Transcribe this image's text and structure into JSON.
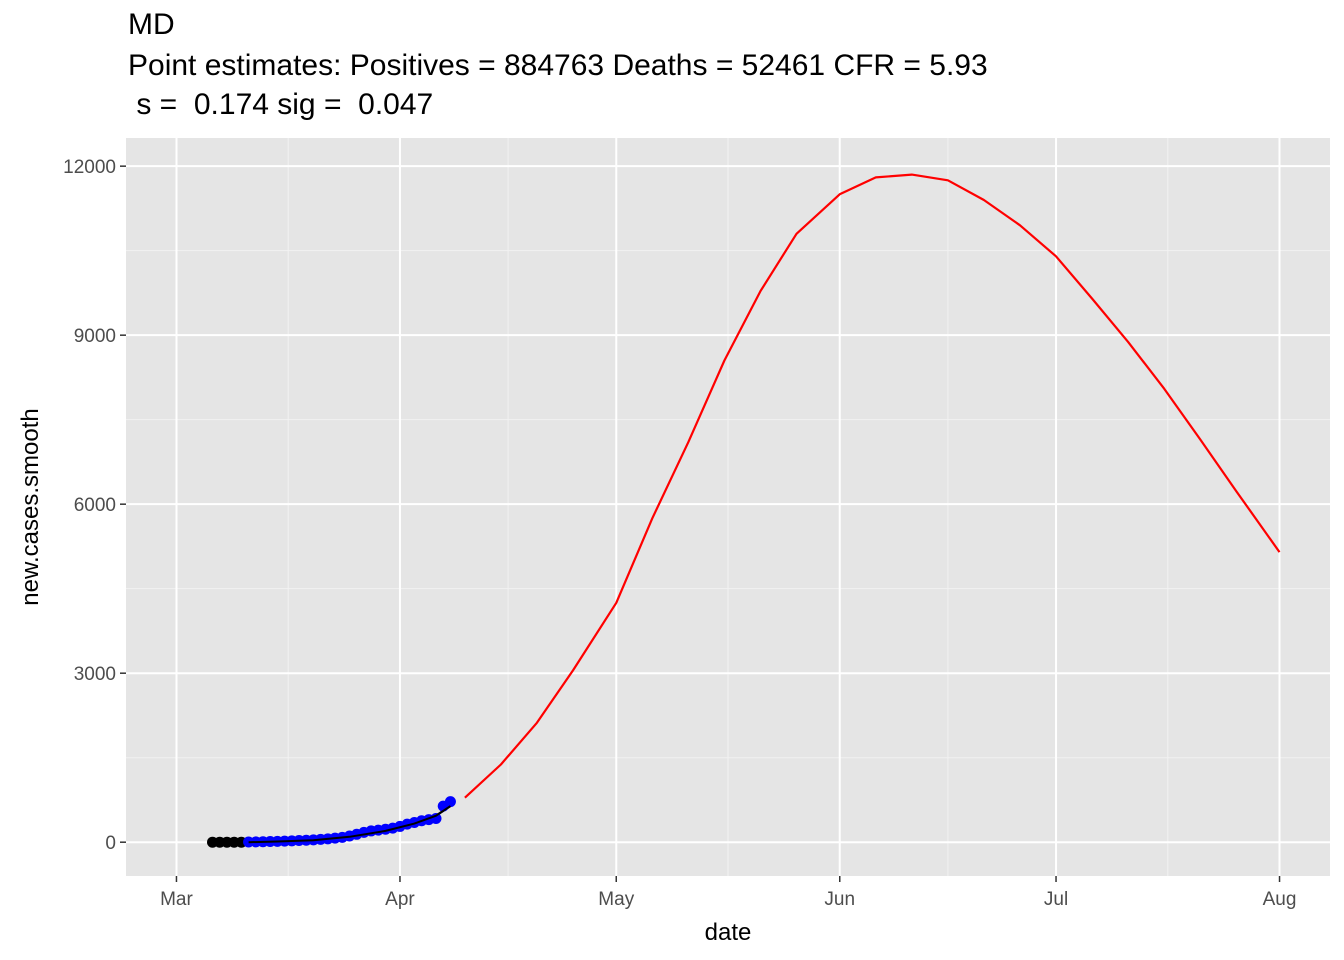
{
  "chart_data": {
    "type": "line",
    "title": "MD",
    "subtitle": "Point estimates: Positives = 884763 Deaths = 52461 CFR = 5.93",
    "subtitle2": " s =  0.174 sig =  0.047",
    "xlabel": "date",
    "ylabel": "new.cases.smooth",
    "x_tick_labels": [
      "Mar",
      "Apr",
      "May",
      "Jun",
      "Jul",
      "Aug"
    ],
    "x_tick_dates": [
      "2020-03-01",
      "2020-04-01",
      "2020-05-01",
      "2020-06-01",
      "2020-07-01",
      "2020-08-01"
    ],
    "y_ticks": [
      0,
      3000,
      6000,
      9000,
      12000
    ],
    "xlim": [
      "2020-02-23",
      "2020-08-08"
    ],
    "ylim": [
      -600,
      12500
    ],
    "grid": true,
    "background": "#e5e5e5",
    "series": [
      {
        "kind": "points",
        "color": "#000000",
        "x": [
          "2020-03-06",
          "2020-03-07",
          "2020-03-08",
          "2020-03-09",
          "2020-03-10"
        ],
        "y": [
          0,
          0,
          0,
          0,
          0
        ]
      },
      {
        "kind": "points",
        "color": "#0000ff",
        "x": [
          "2020-03-11",
          "2020-03-12",
          "2020-03-13",
          "2020-03-14",
          "2020-03-15",
          "2020-03-16",
          "2020-03-17",
          "2020-03-18",
          "2020-03-19",
          "2020-03-20",
          "2020-03-21",
          "2020-03-22",
          "2020-03-23",
          "2020-03-24",
          "2020-03-25",
          "2020-03-26",
          "2020-03-27",
          "2020-03-28",
          "2020-03-29",
          "2020-03-30",
          "2020-03-31",
          "2020-04-01",
          "2020-04-02",
          "2020-04-03",
          "2020-04-04",
          "2020-04-05",
          "2020-04-06",
          "2020-04-07",
          "2020-04-08"
        ],
        "y": [
          3,
          5,
          8,
          12,
          15,
          19,
          24,
          30,
          35,
          42,
          50,
          60,
          72,
          85,
          110,
          140,
          175,
          200,
          215,
          230,
          250,
          280,
          320,
          350,
          380,
          400,
          420,
          640,
          720
        ]
      },
      {
        "kind": "line",
        "color": "#000000",
        "x": [
          "2020-03-11",
          "2020-03-15",
          "2020-03-20",
          "2020-03-25",
          "2020-03-30",
          "2020-04-03",
          "2020-04-06",
          "2020-04-08"
        ],
        "y": [
          0,
          12,
          35,
          95,
          200,
          330,
          470,
          640
        ]
      },
      {
        "kind": "line",
        "color": "#ff0000",
        "x": [
          "2020-04-10",
          "2020-04-15",
          "2020-04-20",
          "2020-04-25",
          "2020-05-01",
          "2020-05-06",
          "2020-05-11",
          "2020-05-16",
          "2020-05-21",
          "2020-05-26",
          "2020-06-01",
          "2020-06-06",
          "2020-06-11",
          "2020-06-16",
          "2020-06-21",
          "2020-06-26",
          "2020-07-01",
          "2020-07-06",
          "2020-07-11",
          "2020-07-16",
          "2020-07-21",
          "2020-07-26",
          "2020-08-01"
        ],
        "y": [
          790,
          1380,
          2120,
          3050,
          4250,
          5750,
          7100,
          8550,
          9780,
          10800,
          11500,
          11800,
          11850,
          11750,
          11400,
          10950,
          10400,
          9650,
          8880,
          8050,
          7150,
          6230,
          5150
        ]
      }
    ]
  }
}
